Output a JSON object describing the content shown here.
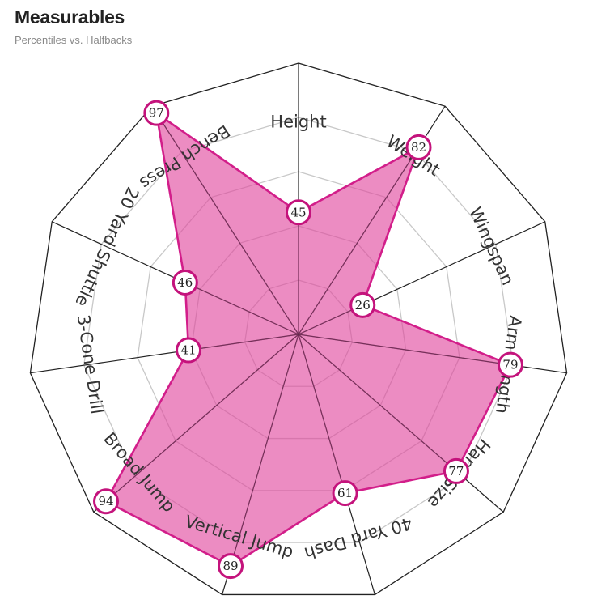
{
  "title": "Measurables",
  "subtitle": "Percentiles vs. Halfbacks",
  "chart_data": {
    "type": "radar",
    "axes": [
      "Height",
      "Weight",
      "Wingspan",
      "Arm Length",
      "Hand Size",
      "40 Yard Dash",
      "Vertical Jump",
      "Broad Jump",
      "3-Cone Drill",
      "20 Yard Shuttle",
      "Bench Press"
    ],
    "series": [
      {
        "values": [
          45,
          82,
          26,
          79,
          77,
          61,
          89,
          94,
          41,
          46,
          97
        ]
      }
    ],
    "range": [
      0,
      100
    ],
    "rings": 5,
    "grid": true,
    "colors": {
      "fill": "#e0459d",
      "stroke": "#d21e8a",
      "marker_stroke": "#c4137c",
      "web": "#222222",
      "grid": "#c8c8c8"
    }
  }
}
